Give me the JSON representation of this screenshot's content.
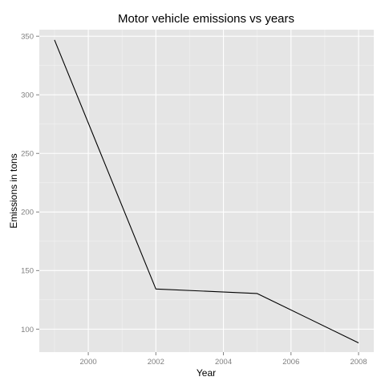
{
  "chart_data": {
    "type": "line",
    "title": "Motor vehicle emissions vs years",
    "xlabel": "Year",
    "ylabel": "Emissions in tons",
    "x": [
      1999,
      2002,
      2005,
      2008
    ],
    "series": [
      {
        "values": [
          346.8,
          134.3,
          130.4,
          88.3
        ]
      }
    ],
    "xlim": [
      1998.55,
      2008.45
    ],
    "ylim": [
      80.4,
      355.6
    ],
    "xticks": [
      2000,
      2002,
      2004,
      2006,
      2008
    ],
    "yticks": [
      100,
      150,
      200,
      250,
      300,
      350
    ],
    "grid": true,
    "legend": "none",
    "colors": {
      "panel": "#e5e5e5",
      "grid_major": "#ffffff",
      "grid_minor": "#f2f2f2",
      "line": "#000000",
      "tick_label": "#7f7f7f",
      "tick_mark": "#7f7f7f"
    }
  }
}
